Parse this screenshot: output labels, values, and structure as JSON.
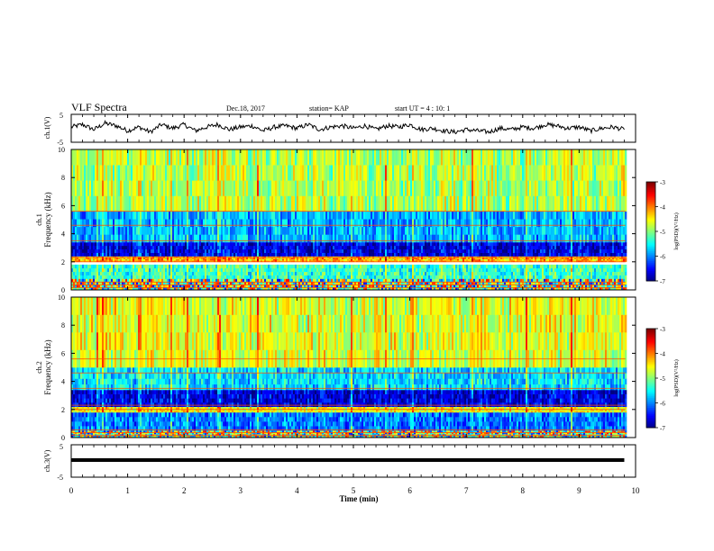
{
  "header": {
    "title": "VLF Spectra",
    "date": "Dec.18, 2017",
    "station": "station= KAP",
    "start": "start  UT =   4 : 10: 1"
  },
  "colors": {
    "waveform": "#000000",
    "background": "#ffffff"
  },
  "chart_data": [
    {
      "type": "line",
      "panel": "ch1-waveform",
      "ylabel": "ch.1(V)",
      "ylim": [
        -5,
        5
      ],
      "yticks": [
        "5",
        "-5"
      ],
      "xlim": [
        0,
        10
      ],
      "x": [
        0,
        0.2,
        0.4,
        0.6,
        0.8,
        1.0,
        1.2,
        1.4,
        1.6,
        1.8,
        2.0,
        2.2,
        2.4,
        2.6,
        2.8,
        3.0,
        3.2,
        3.4,
        3.6,
        3.8,
        4.0,
        4.2,
        4.4,
        4.6,
        4.8,
        5.0,
        5.2,
        5.4,
        5.6,
        5.8,
        6.0,
        6.2,
        6.4,
        6.6,
        6.8,
        7.0,
        7.2,
        7.4,
        7.6,
        7.8,
        8.0,
        8.2,
        8.4,
        8.6,
        8.8,
        9.0,
        9.2,
        9.4,
        9.6,
        9.8
      ],
      "values": [
        0.5,
        1.5,
        -0.5,
        2.0,
        1.0,
        -1.0,
        0.5,
        -1.5,
        1.5,
        0.0,
        1.5,
        -1.0,
        0.5,
        1.5,
        -0.5,
        0.5,
        1.0,
        -1.0,
        0.5,
        1.0,
        0.0,
        1.5,
        -0.5,
        0.5,
        1.0,
        0.0,
        1.0,
        -0.5,
        1.0,
        0.5,
        1.5,
        -0.5,
        0.0,
        -1.0,
        -1.5,
        -0.5,
        -1.0,
        -1.5,
        0.0,
        -0.5,
        0.5,
        0.0,
        1.5,
        1.0,
        0.0,
        0.5,
        -1.0,
        0.0,
        0.5,
        -0.5
      ]
    },
    {
      "type": "heatmap",
      "panel": "ch1-spectrogram",
      "ylabel_top": "ch.1",
      "ylabel": "Frequency (kHz)",
      "ylim": [
        0,
        10
      ],
      "yticks": [
        "0",
        "2",
        "4",
        "6",
        "8",
        "10"
      ],
      "xlim": [
        0,
        10
      ],
      "colorbar": {
        "label": "log(PSD)(V²/Hz)",
        "range": [
          -7,
          -3
        ],
        "ticks": [
          "-3",
          "-4",
          "-5",
          "-6",
          "-7"
        ]
      },
      "bands_khz": [
        {
          "from": 0,
          "to": 0.8,
          "level": "mixed"
        },
        {
          "from": 0.8,
          "to": 1.8,
          "level": -5.3
        },
        {
          "from": 2.0,
          "to": 2.4,
          "level": -4.2
        },
        {
          "from": 2.4,
          "to": 3.4,
          "level": -6.6
        },
        {
          "from": 3.4,
          "to": 5.6,
          "level": -5.8
        },
        {
          "from": 5.6,
          "to": 10,
          "level": -4.8
        }
      ]
    },
    {
      "type": "heatmap",
      "panel": "ch2-spectrogram",
      "ylabel_top": "ch.2",
      "ylabel": "Frequency (kHz)",
      "ylim": [
        0,
        10
      ],
      "yticks": [
        "0",
        "2",
        "4",
        "6",
        "8",
        "10"
      ],
      "xlim": [
        0,
        10
      ],
      "colorbar": {
        "label": "log(PSD)(V²/Hz)",
        "range": [
          -7,
          -3
        ],
        "ticks": [
          "-3",
          "-4",
          "-5",
          "-6",
          "-7"
        ]
      },
      "bands_khz": [
        {
          "from": 0,
          "to": 0.5,
          "level": "mixed"
        },
        {
          "from": 0.5,
          "to": 1.8,
          "level": -6.0
        },
        {
          "from": 1.8,
          "to": 2.2,
          "level": -4.5
        },
        {
          "from": 2.2,
          "to": 3.4,
          "level": -6.6
        },
        {
          "from": 3.4,
          "to": 5.0,
          "level": -5.6
        },
        {
          "from": 5.0,
          "to": 10,
          "level": -4.6
        }
      ]
    },
    {
      "type": "line",
      "panel": "ch3-waveform",
      "ylabel": "ch.3(V)",
      "ylim": [
        -5,
        5
      ],
      "yticks": [
        "5",
        "-5"
      ],
      "xlim": [
        0,
        10
      ],
      "x": [
        0,
        9.8
      ],
      "values": [
        0,
        0
      ]
    }
  ],
  "xaxis": {
    "label": "Time (min)",
    "ticks": [
      "0",
      "1",
      "2",
      "3",
      "4",
      "5",
      "6",
      "7",
      "8",
      "9",
      "10"
    ]
  }
}
